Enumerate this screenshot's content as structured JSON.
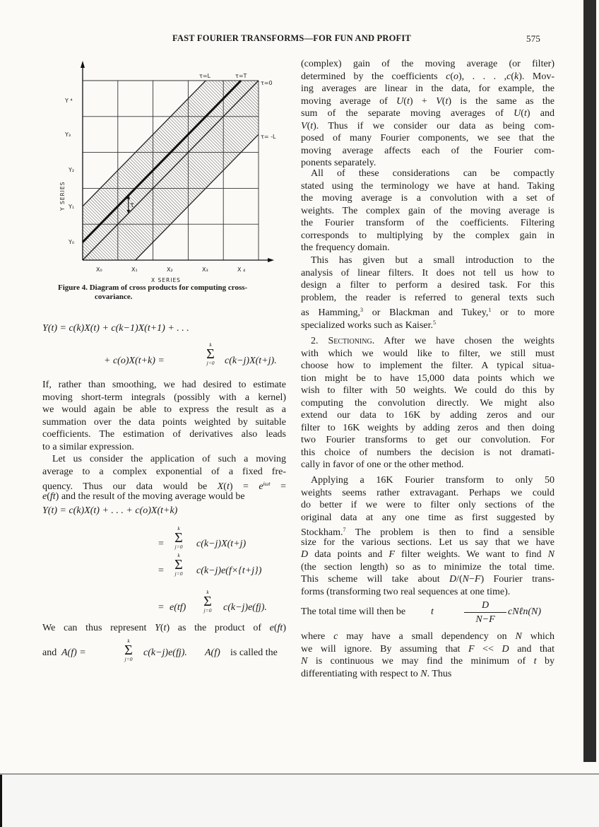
{
  "header": {
    "title": "FAST FOURIER TRANSFORMS—FOR FUN AND PROFIT",
    "page_number": "575"
  },
  "figure": {
    "y_labels": [
      "Y₀",
      "Y₁",
      "Y₂",
      "Y₃",
      "Y ⁴"
    ],
    "x_labels": [
      "X₀",
      "X₁",
      "X₂",
      "X₃",
      "X ₄"
    ],
    "y_axis_title": "Y SERIES",
    "x_axis_title": "X SERIES",
    "line_labels": {
      "tau_L": "τ=L",
      "tau_T": "τ=T",
      "tau_0": "τ=0",
      "tau_neg_L": "τ= -L"
    },
    "tau_label": "τ",
    "caption": [
      "Figure 4. Diagram of cross products for computing cross-",
      "covariance."
    ]
  },
  "left": {
    "eq1": "Y(t) = c(k)X(t) + c(k−1)X(t+1) + . . .",
    "eq2_lhs": "+ c(o)X(t+k) =",
    "eq2_rhs": "c(k−j)X(t+j).",
    "sum_upper": "k",
    "sum_lower": "j=0",
    "sum_symbol": "Σ",
    "para1": [
      "If, rather than smoothing, we had desired to estimate",
      "moving short-term integrals (possibly with a kernel)",
      "we would again be able to express the result as a",
      "summation over the data points weighted by suitable",
      "coefficients. The estimation of derivatives also leads",
      "to a similar expression."
    ],
    "para2": [
      "Let us consider the application of such a moving",
      "average to a complex exponential of a fixed fre-",
      [
        {
          "t": "quency. Thus our data would be "
        },
        {
          "t": "X",
          "c": "i"
        },
        {
          "t": "("
        },
        {
          "t": "t",
          "c": "i"
        },
        {
          "t": ") = "
        },
        {
          "t": "e",
          "c": "i"
        },
        {
          "t": "iωt",
          "c": "s i"
        },
        {
          "t": " ="
        }
      ],
      [
        {
          "t": "e",
          "c": "i"
        },
        {
          "t": "("
        },
        {
          "t": "ft",
          "c": "i"
        },
        {
          "t": ") and the result of the moving average would be"
        }
      ]
    ],
    "eq3": "Y(t) = c(k)X(t) + . . . + c(o)X(t+k)",
    "eq4_rhs": "c(k−j)X(t+j)",
    "eq5_rhs": "c(k−j)e(f×{t+j})",
    "eq6_lhs": "e(tf)",
    "eq6_rhs": "c(k−j)e(fj).",
    "equals": "=",
    "para3": [
      [
        {
          "t": "We can thus represent "
        },
        {
          "t": "Y",
          "c": "i"
        },
        {
          "t": "("
        },
        {
          "t": "t",
          "c": "i"
        },
        {
          "t": ") as the product of "
        },
        {
          "t": "e",
          "c": "i"
        },
        {
          "t": "("
        },
        {
          "t": "ft",
          "c": "i"
        },
        {
          "t": ")"
        }
      ]
    ],
    "eq7_lead": "and",
    "eq7_lhs": "A(f) =",
    "eq7_rhs": "c(k−j)e(fj).",
    "eq7_tail_var": "A(f)",
    "eq7_tail": "is called the"
  },
  "right": {
    "p1": [
      "(complex) gain of the moving average (or filter)",
      [
        {
          "t": "determined by the coefficients "
        },
        {
          "t": "c",
          "c": "i"
        },
        {
          "t": "("
        },
        {
          "t": "o",
          "c": "i"
        },
        {
          "t": "), . . . ,"
        },
        {
          "t": "c",
          "c": "i"
        },
        {
          "t": "("
        },
        {
          "t": "k",
          "c": "i"
        },
        {
          "t": "). Mov-"
        }
      ],
      "ing averages are linear in the data, for example, the",
      [
        {
          "t": "moving average of "
        },
        {
          "t": "U",
          "c": "i"
        },
        {
          "t": "("
        },
        {
          "t": "t",
          "c": "i"
        },
        {
          "t": ") + "
        },
        {
          "t": "V",
          "c": "i"
        },
        {
          "t": "("
        },
        {
          "t": "t",
          "c": "i"
        },
        {
          "t": ") is the same as the"
        }
      ],
      [
        {
          "t": "sum of the separate moving averages of "
        },
        {
          "t": "U",
          "c": "i"
        },
        {
          "t": "("
        },
        {
          "t": "t",
          "c": "i"
        },
        {
          "t": ") and"
        }
      ],
      [
        {
          "t": "V",
          "c": "i"
        },
        {
          "t": "("
        },
        {
          "t": "t",
          "c": "i"
        },
        {
          "t": "). Thus if we consider our data as being com-"
        }
      ],
      "posed of many Fourier components, we see that the",
      "moving average affects each of the Fourier com-",
      "ponents separately."
    ],
    "p2": [
      "All of these considerations can be compactly",
      "stated using the terminology we have at hand. Taking",
      "the moving average is a convolution with a set of",
      "weights. The complex gain of the moving average is",
      "the Fourier transform of the coefficients. Filtering",
      "corresponds to multiplying by the complex gain in",
      "the frequency domain."
    ],
    "p3": [
      "This has given but a small introduction to the",
      "analysis of linear filters. It does not tell us how to",
      "design a filter to perform a desired task. For this",
      "problem, the reader is referred to general texts such",
      [
        {
          "t": "as Hamming,"
        },
        {
          "t": "3",
          "c": "s"
        },
        {
          "t": " or Blackman and Tukey,"
        },
        {
          "t": "1",
          "c": "s"
        },
        {
          "t": " or to more"
        }
      ],
      [
        {
          "t": "specialized works such as Kaiser."
        },
        {
          "t": "5",
          "c": "s"
        }
      ]
    ],
    "p4": [
      [
        {
          "t": "2. "
        },
        {
          "t": "Sectioning",
          "c": "sc"
        },
        {
          "t": ". After we have chosen the weights"
        }
      ],
      "with which we would like to filter, we still must",
      "choose how to implement the filter. A typical situa-",
      "tion might be to have 15,000 data points which we",
      "wish to filter with 50 weights. We could do this by",
      "computing the convolution directly. We might also",
      "extend our data to 16K by adding zeros and our",
      "filter to 16K weights by adding zeros and then doing",
      "two Fourier transforms to get our convolution. For",
      "this choice of numbers the decision is not dramati-",
      "cally in favor of one or the other method."
    ],
    "p5": [
      "Applying a 16K Fourier transform to only 50",
      "weights seems rather extravagant. Perhaps we could",
      "do better if we were to filter only sections of the",
      "original data at any one time as first suggested by",
      [
        {
          "t": "Stockham."
        },
        {
          "t": "7",
          "c": "s"
        },
        {
          "t": " The problem is then to find a sensible"
        }
      ],
      "size for the various sections. Let us say that we have",
      [
        {
          "t": "D",
          "c": "i"
        },
        {
          "t": " data points and "
        },
        {
          "t": "F",
          "c": "i"
        },
        {
          "t": " filter weights. We want to find "
        },
        {
          "t": "N",
          "c": "i"
        }
      ],
      "(the section length) so as to minimize the total time.",
      [
        {
          "t": "This scheme will take about "
        },
        {
          "t": "D",
          "c": "i"
        },
        {
          "t": "/("
        },
        {
          "t": "N",
          "c": "i"
        },
        {
          "t": "−"
        },
        {
          "t": "F",
          "c": "i"
        },
        {
          "t": ") Fourier trans-"
        }
      ],
      "forms (transforming two real sequences at one time)."
    ],
    "eq_text": "The total time will then be",
    "eq_var": "t",
    "eq_num": "D",
    "eq_den": "N−F",
    "eq_tail": "cNℓn(N)",
    "p6": [
      [
        {
          "t": "where "
        },
        {
          "t": "c",
          "c": "i"
        },
        {
          "t": " may have a small dependency on "
        },
        {
          "t": "N",
          "c": "i"
        },
        {
          "t": " which"
        }
      ],
      [
        {
          "t": "we will ignore. By assuming that "
        },
        {
          "t": "F",
          "c": "i"
        },
        {
          "t": " << "
        },
        {
          "t": "D",
          "c": "i"
        },
        {
          "t": " and that"
        }
      ],
      [
        {
          "t": "N",
          "c": "i"
        },
        {
          "t": " is continuous we may find the minimum of "
        },
        {
          "t": "t",
          "c": "i"
        },
        {
          "t": " by"
        }
      ],
      [
        {
          "t": "differentiating with respect to "
        },
        {
          "t": "N",
          "c": "i"
        },
        {
          "t": ". Thus"
        }
      ]
    ]
  }
}
